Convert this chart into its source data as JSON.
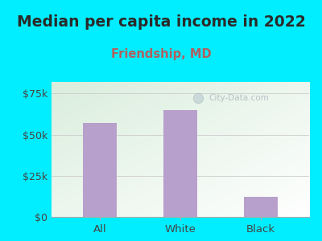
{
  "title": "Median per capita income in 2022",
  "subtitle": "Friendship, MD",
  "categories": [
    "All",
    "White",
    "Black"
  ],
  "values": [
    57000,
    65000,
    12000
  ],
  "bar_color": "#b8a0cc",
  "bg_color": "#00eeff",
  "yticks": [
    0,
    25000,
    50000,
    75000
  ],
  "ytick_labels": [
    "$0",
    "$25k",
    "$50k",
    "$75k"
  ],
  "title_fontsize": 13.5,
  "subtitle_fontsize": 10.5,
  "title_color": "#2a2a2a",
  "subtitle_color": "#b06060",
  "tick_color": "#444444",
  "axis_color": "#aaaaaa",
  "watermark": "City-Data.com",
  "ylim": [
    0,
    82000
  ],
  "plot_bg_left": "#daeedd",
  "plot_bg_right": "#ffffff"
}
